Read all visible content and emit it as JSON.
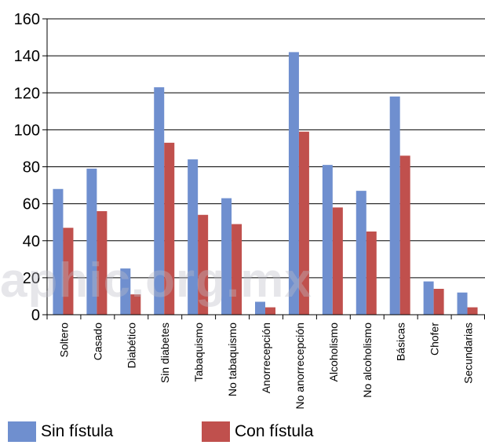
{
  "chart_data": {
    "type": "bar",
    "categories": [
      "Soltero",
      "Casado",
      "Diabético",
      "Sin diabetes",
      "Tabaquismo",
      "No tabaquismo",
      "Anorrecepción",
      "No anorrecepción",
      "Alcoholismo",
      "No alcoholismo",
      "Básicas",
      "Chofer",
      "Secundarias"
    ],
    "series": [
      {
        "name": "Sin fístula",
        "color": "#6f8fcf",
        "values": [
          68,
          79,
          25,
          123,
          84,
          63,
          7,
          142,
          81,
          67,
          118,
          18,
          12
        ]
      },
      {
        "name": "Con fístula",
        "color": "#c0504d",
        "values": [
          47,
          56,
          11,
          93,
          54,
          49,
          4,
          99,
          58,
          45,
          86,
          14,
          4
        ]
      }
    ],
    "ylim": [
      0,
      160
    ],
    "yticks": [
      0,
      20,
      40,
      60,
      80,
      100,
      120,
      140,
      160
    ],
    "grid": true,
    "legend_position": "bottom"
  },
  "watermark_text": "aphic.org.mx"
}
